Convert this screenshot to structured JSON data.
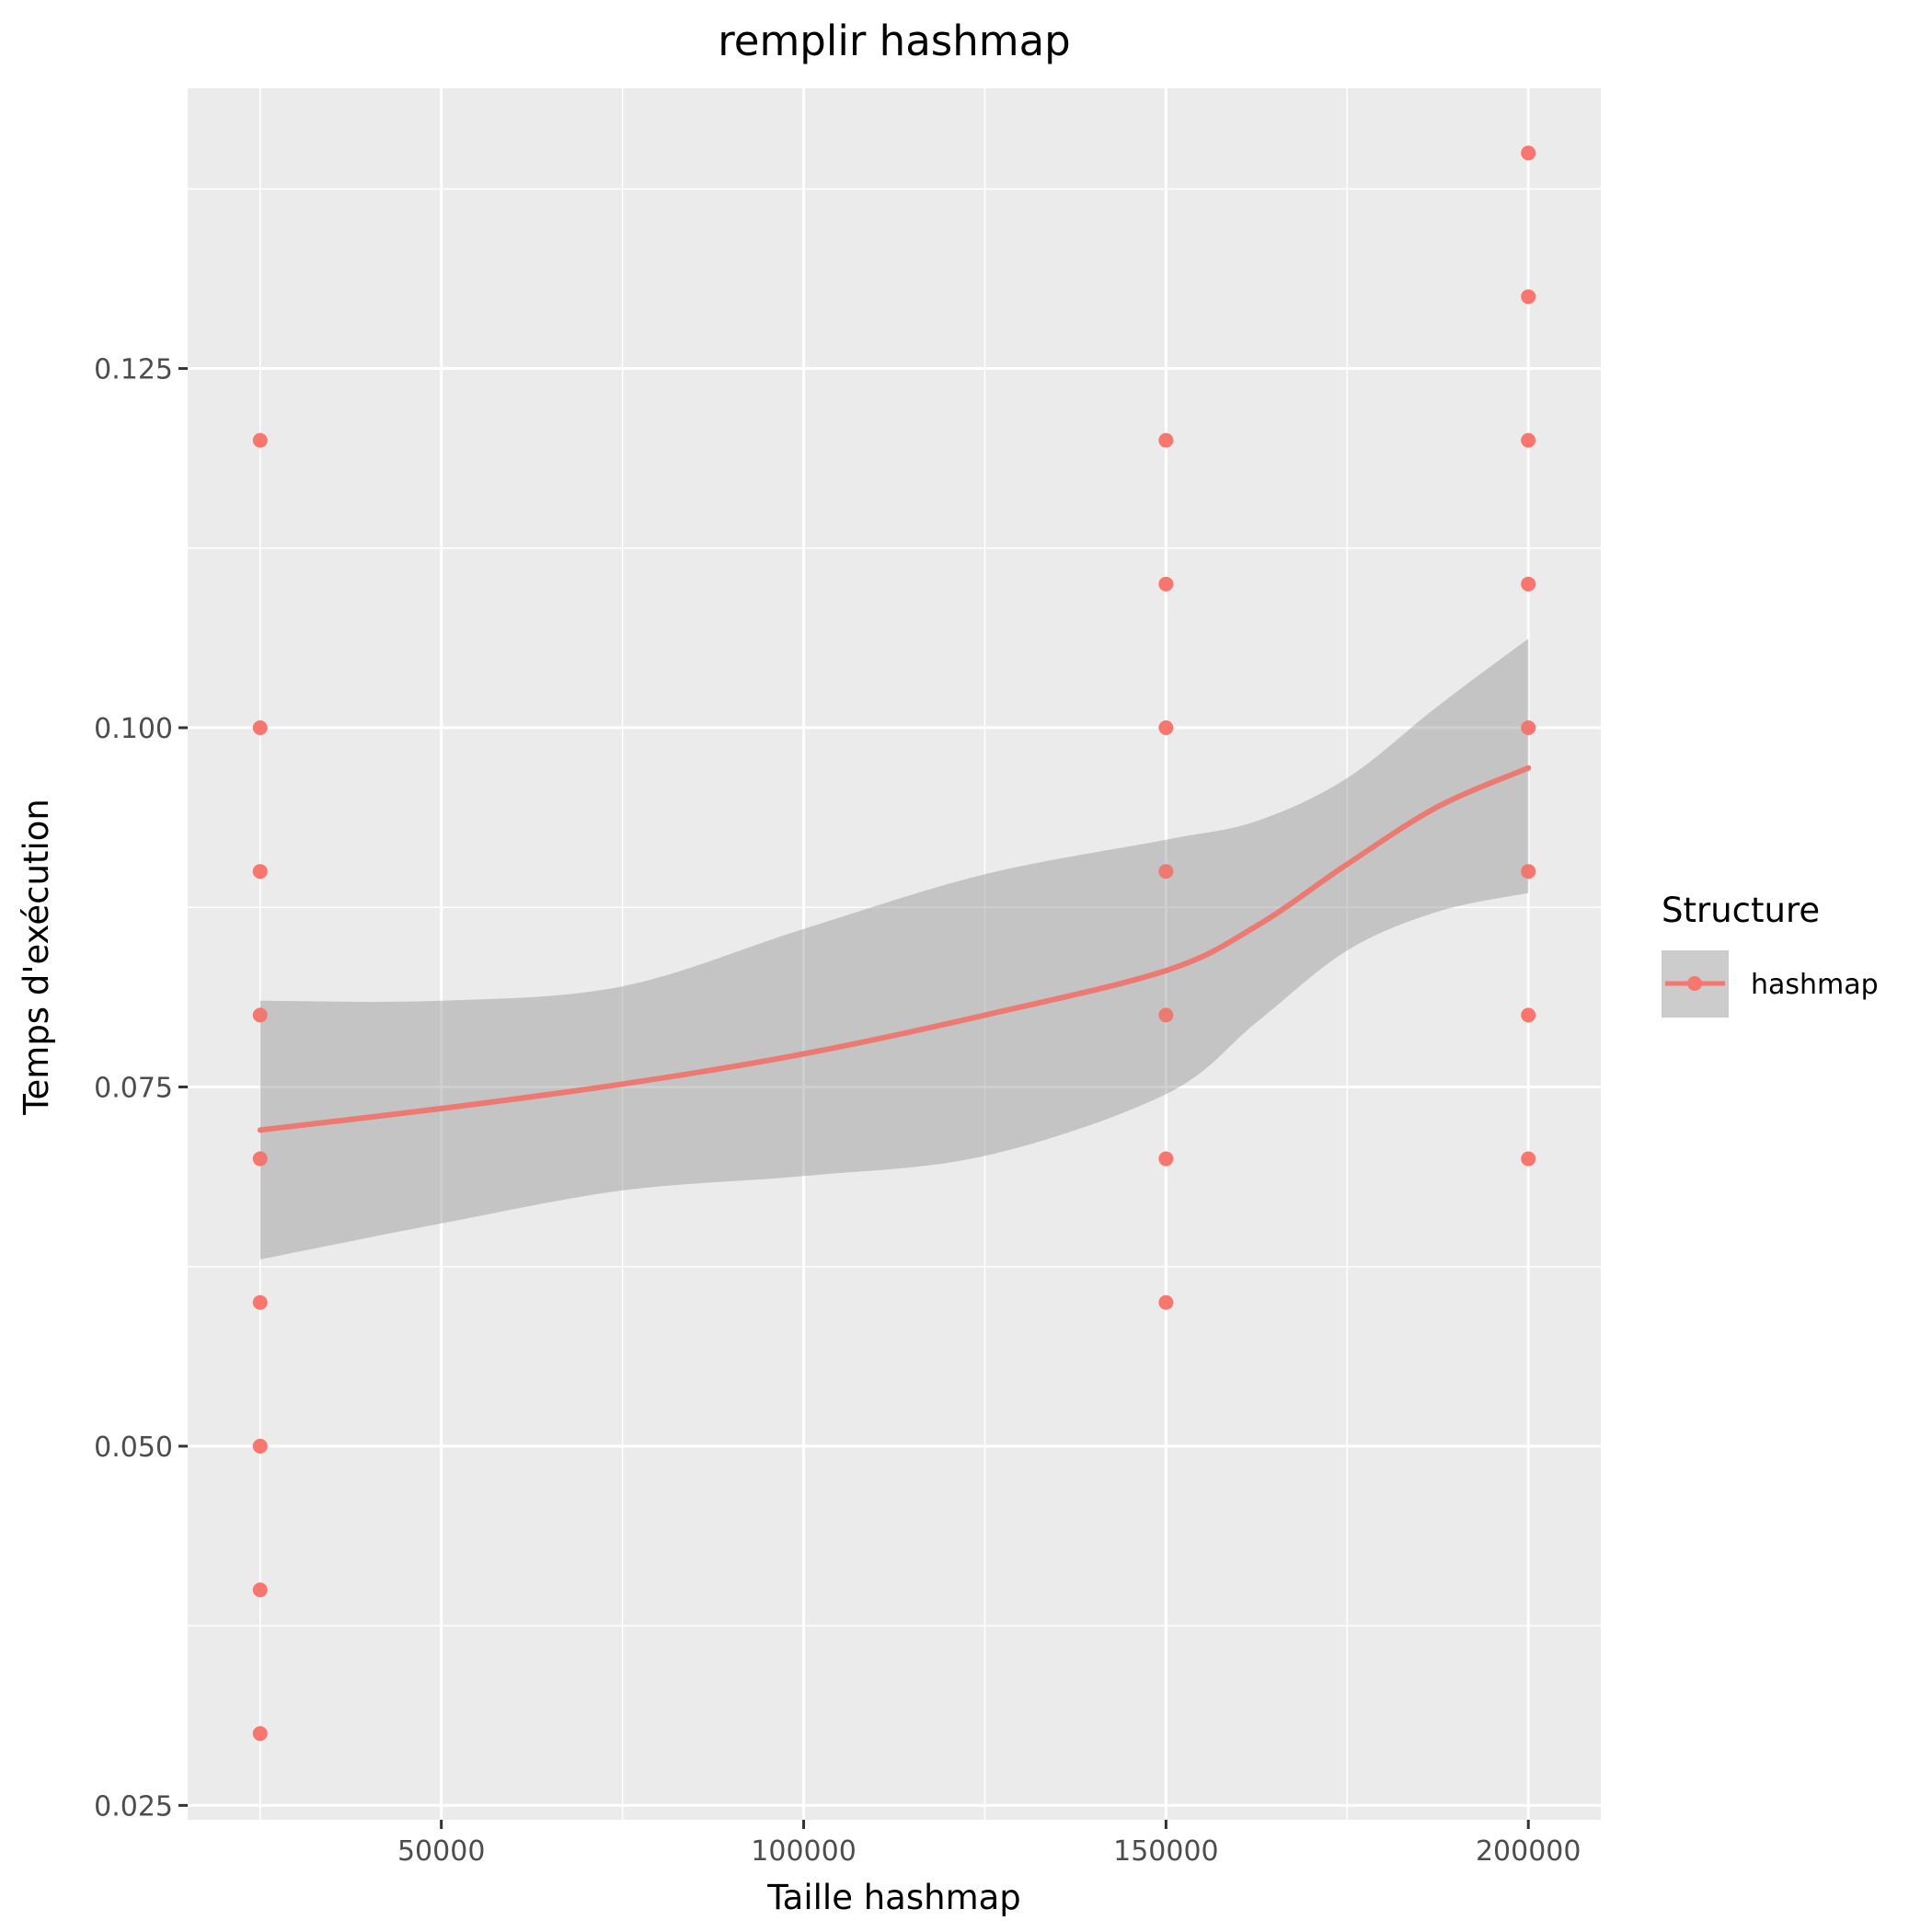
{
  "chart_data": {
    "type": "scatter",
    "title": "remplir hashmap",
    "xlabel": "Taille hashmap",
    "ylabel": "Temps d'exécution",
    "xlim": [
      15000,
      210000
    ],
    "ylim": [
      0.024,
      0.1445
    ],
    "x_ticks": [
      50000,
      100000,
      150000,
      200000
    ],
    "x_tick_labels": [
      "50000",
      "100000",
      "150000",
      "200000"
    ],
    "y_ticks": [
      0.025,
      0.05,
      0.075,
      0.1,
      0.125
    ],
    "y_tick_labels": [
      "0.025",
      "0.050",
      "0.075",
      "0.100",
      "0.125"
    ],
    "grid": true,
    "legend": {
      "title": "Structure",
      "position": "right",
      "entries": [
        "hashmap"
      ]
    },
    "colors": {
      "series": "#F8766D",
      "band": "#999999",
      "panel": "#EBEBEB",
      "grid": "#FFFFFF"
    },
    "series": [
      {
        "name": "hashmap",
        "points": [
          {
            "x": 25000,
            "y": 0.12
          },
          {
            "x": 25000,
            "y": 0.1
          },
          {
            "x": 25000,
            "y": 0.09
          },
          {
            "x": 25000,
            "y": 0.08
          },
          {
            "x": 25000,
            "y": 0.07
          },
          {
            "x": 25000,
            "y": 0.06
          },
          {
            "x": 25000,
            "y": 0.05
          },
          {
            "x": 25000,
            "y": 0.04
          },
          {
            "x": 25000,
            "y": 0.03
          },
          {
            "x": 150000,
            "y": 0.12
          },
          {
            "x": 150000,
            "y": 0.11
          },
          {
            "x": 150000,
            "y": 0.1
          },
          {
            "x": 150000,
            "y": 0.09
          },
          {
            "x": 150000,
            "y": 0.08
          },
          {
            "x": 150000,
            "y": 0.07
          },
          {
            "x": 150000,
            "y": 0.06
          },
          {
            "x": 200000,
            "y": 0.14
          },
          {
            "x": 200000,
            "y": 0.13
          },
          {
            "x": 200000,
            "y": 0.12
          },
          {
            "x": 200000,
            "y": 0.11
          },
          {
            "x": 200000,
            "y": 0.1
          },
          {
            "x": 200000,
            "y": 0.09
          },
          {
            "x": 200000,
            "y": 0.08
          },
          {
            "x": 200000,
            "y": 0.07
          }
        ],
        "smooth": {
          "x": [
            25000,
            50000,
            75000,
            100000,
            125000,
            150000,
            162500,
            175000,
            187500,
            200000
          ],
          "y": [
            0.072,
            0.0735,
            0.0752,
            0.0773,
            0.08,
            0.0831,
            0.0862,
            0.0905,
            0.0945,
            0.0972
          ],
          "lower": [
            0.063,
            0.0655,
            0.0678,
            0.0688,
            0.0702,
            0.0745,
            0.0795,
            0.0845,
            0.0872,
            0.0885
          ],
          "upper": [
            0.081,
            0.081,
            0.082,
            0.086,
            0.0898,
            0.0922,
            0.0935,
            0.0965,
            0.1015,
            0.1062
          ]
        }
      }
    ]
  }
}
